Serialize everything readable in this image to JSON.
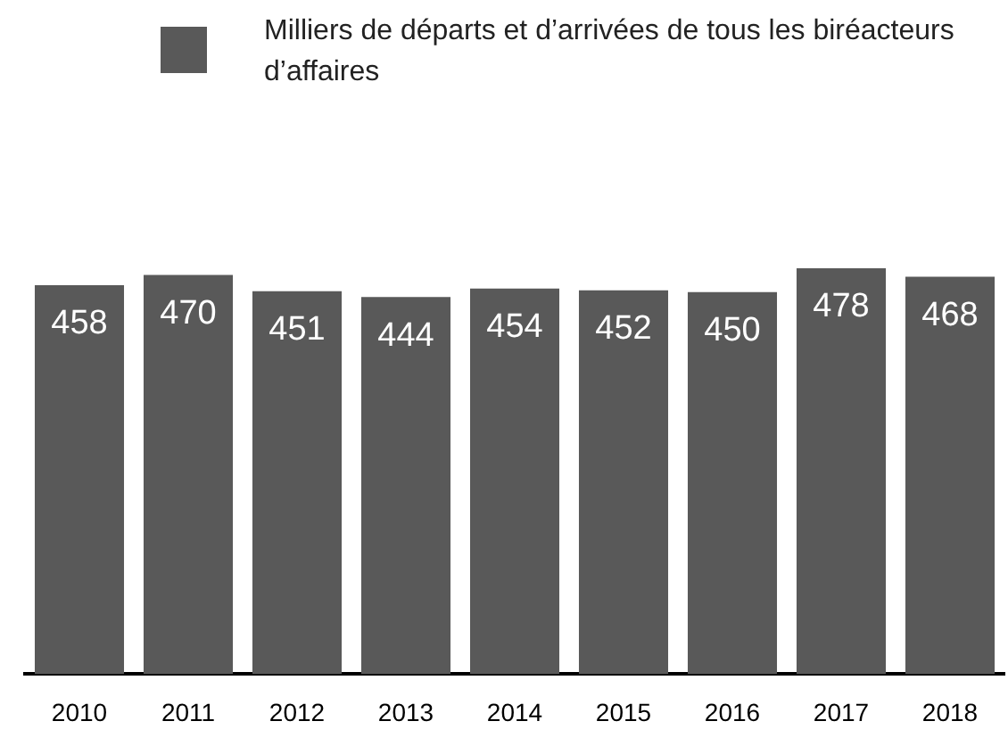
{
  "chart_data": {
    "type": "bar",
    "categories": [
      "2010",
      "2011",
      "2012",
      "2013",
      "2014",
      "2015",
      "2016",
      "2017",
      "2018"
    ],
    "series": [
      {
        "name": "Milliers de départs et d’arrivées de tous les biréacteurs d’affaires",
        "color": "#595959",
        "values": [
          458,
          470,
          451,
          444,
          454,
          452,
          450,
          478,
          468
        ]
      }
    ],
    "data_labels": true,
    "legend": "top",
    "grid": false
  }
}
